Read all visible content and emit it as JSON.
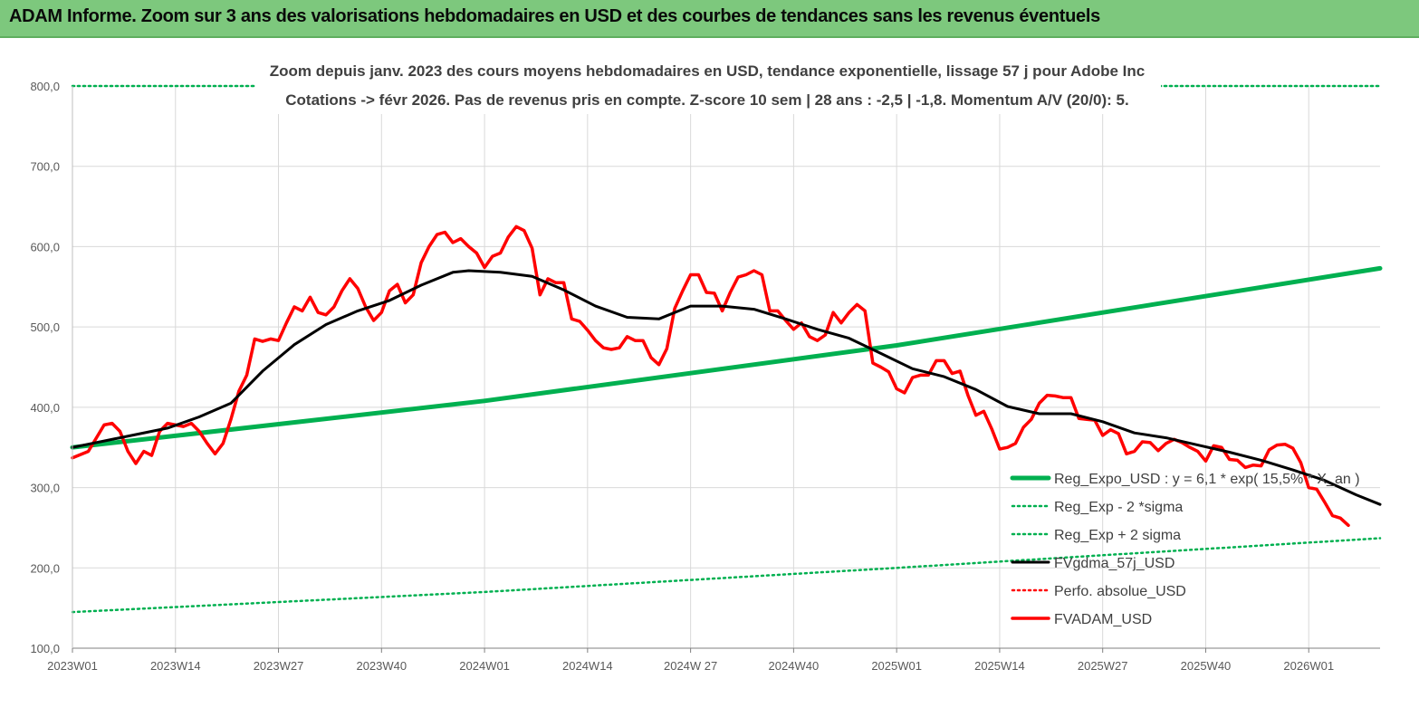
{
  "header": {
    "title": "ADAM Informe. Zoom sur 3 ans des valorisations hebdomadaires en USD et des courbes de tendances sans les revenus éventuels"
  },
  "colors": {
    "header_bg": "#7dc87d",
    "trend": "#00b050",
    "sigma": "#00b050",
    "moving_average": "#000000",
    "price": "#ff0000",
    "perf": "#ff0000"
  },
  "chart_data": {
    "type": "line",
    "title": "Zoom depuis janv. 2023 des cours moyens hebdomadaires en USD, tendance exponentielle, lissage 57 j pour Adobe Inc",
    "subtitle": "Cotations -> févr 2026.  Pas de revenus pris en compte. Z-score 10 sem | 28 ans : -2,5 | -1,8. Momentum A/V (20/0): 5.",
    "xlabel": "",
    "ylabel": "",
    "ylim": [
      100,
      800
    ],
    "y_ticks": [
      "100,0",
      "200,0",
      "300,0",
      "400,0",
      "500,0",
      "600,0",
      "700,0",
      "800,0"
    ],
    "x_tick_labels": [
      "2023W01",
      "2023W14",
      "2023W27",
      "2023W40",
      "2024W01",
      "2024W14",
      "2024W 27",
      "2024W40",
      "2025W01",
      "2025W14",
      "2025W27",
      "2025W40",
      "2026W01"
    ],
    "x_tick_weeks": [
      0,
      13,
      26,
      39,
      52,
      65,
      78,
      91,
      104,
      117,
      130,
      143,
      156
    ],
    "x_range_weeks": [
      0,
      165
    ],
    "grid": "horizontal and vertical",
    "legend_position": "bottom-right",
    "series": [
      {
        "name": "Reg_Expo_USD : y = 6,1 * exp( 15,5% * X_an )",
        "style": "solid-thick",
        "color": "#00b050",
        "points": [
          [
            0,
            350
          ],
          [
            52,
            408
          ],
          [
            104,
            477
          ],
          [
            165,
            573
          ]
        ]
      },
      {
        "name": "Reg_Exp - 2 *sigma",
        "style": "dotted",
        "color": "#00b050",
        "points": [
          [
            0,
            145
          ],
          [
            52,
            170
          ],
          [
            104,
            200
          ],
          [
            165,
            237
          ]
        ]
      },
      {
        "name": "Reg_Exp + 2 sigma",
        "style": "dotted",
        "color": "#00b050",
        "points": [
          [
            0,
            800
          ],
          [
            165,
            800
          ]
        ]
      },
      {
        "name": "FVgdma_57j_USD",
        "style": "solid",
        "color": "#000000",
        "points": [
          [
            0,
            350
          ],
          [
            4,
            358
          ],
          [
            8,
            366
          ],
          [
            12,
            374
          ],
          [
            16,
            388
          ],
          [
            20,
            405
          ],
          [
            24,
            445
          ],
          [
            28,
            478
          ],
          [
            32,
            503
          ],
          [
            36,
            520
          ],
          [
            40,
            533
          ],
          [
            44,
            552
          ],
          [
            48,
            568
          ],
          [
            50,
            570
          ],
          [
            54,
            568
          ],
          [
            58,
            563
          ],
          [
            62,
            546
          ],
          [
            66,
            526
          ],
          [
            70,
            512
          ],
          [
            74,
            510
          ],
          [
            78,
            526
          ],
          [
            82,
            526
          ],
          [
            86,
            522
          ],
          [
            90,
            510
          ],
          [
            94,
            497
          ],
          [
            98,
            486
          ],
          [
            102,
            467
          ],
          [
            106,
            448
          ],
          [
            110,
            438
          ],
          [
            114,
            422
          ],
          [
            118,
            401
          ],
          [
            122,
            392
          ],
          [
            126,
            392
          ],
          [
            130,
            382
          ],
          [
            134,
            368
          ],
          [
            138,
            362
          ],
          [
            142,
            353
          ],
          [
            146,
            344
          ],
          [
            150,
            334
          ],
          [
            154,
            322
          ],
          [
            158,
            309
          ],
          [
            162,
            291
          ],
          [
            165,
            279
          ]
        ]
      },
      {
        "name": "Perfo. absolue_USD",
        "style": "dotted",
        "color": "#ff0000",
        "points": []
      },
      {
        "name": "FVADAM_USD",
        "style": "solid",
        "color": "#ff0000",
        "points": [
          [
            0,
            337
          ],
          [
            2,
            345
          ],
          [
            4,
            378
          ],
          [
            5,
            380
          ],
          [
            6,
            370
          ],
          [
            7,
            345
          ],
          [
            8,
            330
          ],
          [
            9,
            345
          ],
          [
            10,
            340
          ],
          [
            11,
            370
          ],
          [
            12,
            380
          ],
          [
            13,
            378
          ],
          [
            14,
            376
          ],
          [
            15,
            380
          ],
          [
            16,
            370
          ],
          [
            17,
            355
          ],
          [
            18,
            342
          ],
          [
            19,
            355
          ],
          [
            20,
            385
          ],
          [
            21,
            420
          ],
          [
            22,
            440
          ],
          [
            23,
            485
          ],
          [
            24,
            482
          ],
          [
            25,
            485
          ],
          [
            26,
            483
          ],
          [
            27,
            505
          ],
          [
            28,
            525
          ],
          [
            29,
            520
          ],
          [
            30,
            537
          ],
          [
            31,
            518
          ],
          [
            32,
            515
          ],
          [
            33,
            525
          ],
          [
            34,
            545
          ],
          [
            35,
            560
          ],
          [
            36,
            548
          ],
          [
            37,
            525
          ],
          [
            38,
            508
          ],
          [
            39,
            518
          ],
          [
            40,
            545
          ],
          [
            41,
            553
          ],
          [
            42,
            530
          ],
          [
            43,
            540
          ],
          [
            44,
            580
          ],
          [
            45,
            600
          ],
          [
            46,
            615
          ],
          [
            47,
            618
          ],
          [
            48,
            605
          ],
          [
            49,
            610
          ],
          [
            50,
            600
          ],
          [
            51,
            592
          ],
          [
            52,
            574
          ],
          [
            53,
            588
          ],
          [
            54,
            592
          ],
          [
            55,
            612
          ],
          [
            56,
            625
          ],
          [
            57,
            620
          ],
          [
            58,
            598
          ],
          [
            59,
            540
          ],
          [
            60,
            560
          ],
          [
            61,
            555
          ],
          [
            62,
            555
          ],
          [
            63,
            510
          ],
          [
            64,
            507
          ],
          [
            65,
            496
          ],
          [
            66,
            483
          ],
          [
            67,
            474
          ],
          [
            68,
            472
          ],
          [
            69,
            474
          ],
          [
            70,
            488
          ],
          [
            71,
            483
          ],
          [
            72,
            483
          ],
          [
            73,
            462
          ],
          [
            74,
            453
          ],
          [
            75,
            473
          ],
          [
            76,
            523
          ],
          [
            77,
            545
          ],
          [
            78,
            565
          ],
          [
            79,
            565
          ],
          [
            80,
            543
          ],
          [
            81,
            542
          ],
          [
            82,
            520
          ],
          [
            83,
            543
          ],
          [
            84,
            562
          ],
          [
            85,
            565
          ],
          [
            86,
            570
          ],
          [
            87,
            565
          ],
          [
            88,
            520
          ],
          [
            89,
            520
          ],
          [
            90,
            508
          ],
          [
            91,
            497
          ],
          [
            92,
            505
          ],
          [
            93,
            488
          ],
          [
            94,
            483
          ],
          [
            95,
            490
          ],
          [
            96,
            518
          ],
          [
            97,
            505
          ],
          [
            98,
            518
          ],
          [
            99,
            528
          ],
          [
            100,
            520
          ],
          [
            101,
            455
          ],
          [
            102,
            450
          ],
          [
            103,
            444
          ],
          [
            104,
            423
          ],
          [
            105,
            418
          ],
          [
            106,
            437
          ],
          [
            107,
            440
          ],
          [
            108,
            440
          ],
          [
            109,
            458
          ],
          [
            110,
            458
          ],
          [
            111,
            442
          ],
          [
            112,
            445
          ],
          [
            113,
            415
          ],
          [
            114,
            390
          ],
          [
            115,
            395
          ],
          [
            116,
            373
          ],
          [
            117,
            348
          ],
          [
            118,
            350
          ],
          [
            119,
            355
          ],
          [
            120,
            375
          ],
          [
            121,
            385
          ],
          [
            122,
            405
          ],
          [
            123,
            415
          ],
          [
            124,
            414
          ],
          [
            125,
            412
          ],
          [
            126,
            412
          ],
          [
            127,
            386
          ],
          [
            128,
            385
          ],
          [
            129,
            384
          ],
          [
            130,
            365
          ],
          [
            131,
            372
          ],
          [
            132,
            367
          ],
          [
            133,
            342
          ],
          [
            134,
            345
          ],
          [
            135,
            357
          ],
          [
            136,
            356
          ],
          [
            137,
            346
          ],
          [
            138,
            355
          ],
          [
            139,
            360
          ],
          [
            140,
            356
          ],
          [
            141,
            350
          ],
          [
            142,
            345
          ],
          [
            143,
            333
          ],
          [
            144,
            352
          ],
          [
            145,
            350
          ],
          [
            146,
            335
          ],
          [
            147,
            334
          ],
          [
            148,
            325
          ],
          [
            149,
            328
          ],
          [
            150,
            327
          ],
          [
            151,
            347
          ],
          [
            152,
            353
          ],
          [
            153,
            354
          ],
          [
            154,
            349
          ],
          [
            155,
            331
          ],
          [
            156,
            300
          ],
          [
            157,
            298
          ],
          [
            158,
            282
          ],
          [
            159,
            265
          ],
          [
            160,
            262
          ],
          [
            161,
            253
          ]
        ]
      }
    ]
  }
}
